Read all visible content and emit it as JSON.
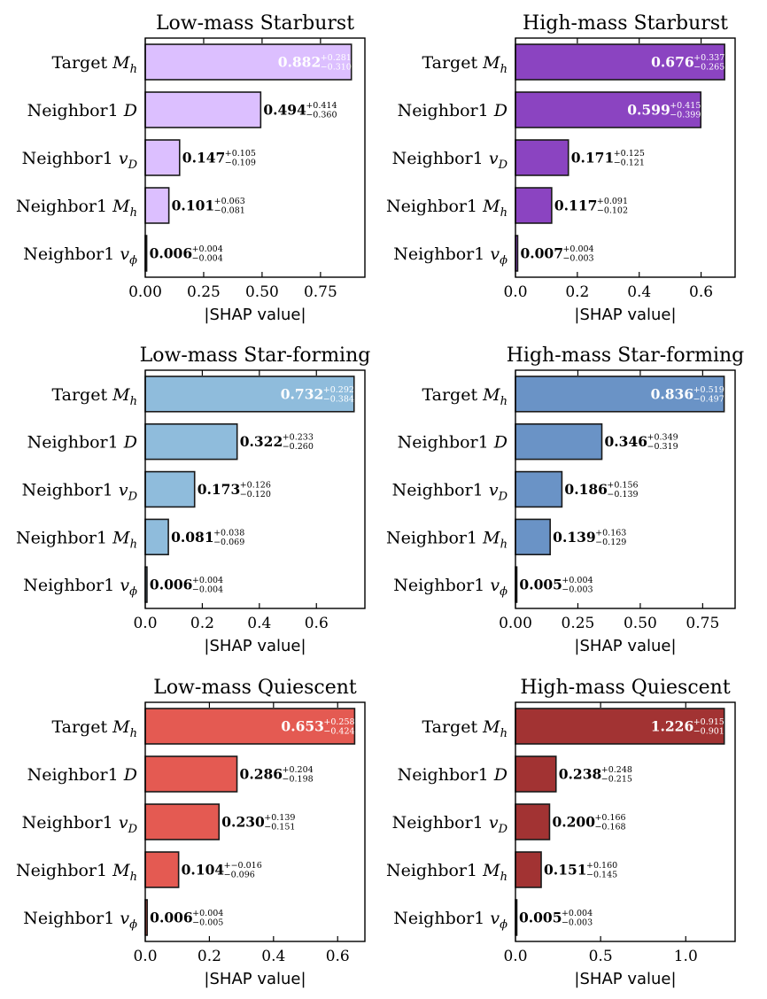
{
  "chart_data": [
    {
      "type": "bar",
      "orientation": "horizontal",
      "title": "Low-mass Starburst",
      "color": "#dcbfff",
      "xlabel": "|SHAP value|",
      "xlim": [
        0,
        0.94
      ],
      "xticks": [
        0.0,
        0.25,
        0.5,
        0.75
      ],
      "xtick_labels": [
        "0.00",
        "0.25",
        "0.50",
        "0.75"
      ],
      "categories": [
        {
          "pre": "Target",
          "sym": "M",
          "sub": "h"
        },
        {
          "pre": "Neighbor1",
          "sym": "D",
          "sub": ""
        },
        {
          "pre": "Neighbor1",
          "sym": "v",
          "sub": "D"
        },
        {
          "pre": "Neighbor1",
          "sym": "M",
          "sub": "h"
        },
        {
          "pre": "Neighbor1",
          "sym": "v",
          "sub": "ϕ"
        }
      ],
      "values": [
        0.882,
        0.494,
        0.147,
        0.101,
        0.006
      ],
      "value_labels": [
        "0.882",
        "0.494",
        "0.147",
        "0.101",
        "0.006"
      ],
      "err_plus": [
        "+0.281",
        "+0.414",
        "+0.105",
        "+0.063",
        "+0.004"
      ],
      "err_minus": [
        "−0.310",
        "−0.360",
        "−0.109",
        "−0.081",
        "−0.004"
      ]
    },
    {
      "type": "bar",
      "orientation": "horizontal",
      "title": "High-mass Starburst",
      "color": "#8b44c1",
      "xlabel": "|SHAP value|",
      "xlim": [
        0,
        0.71
      ],
      "xticks": [
        0.0,
        0.2,
        0.4,
        0.6
      ],
      "xtick_labels": [
        "0.0",
        "0.2",
        "0.4",
        "0.6"
      ],
      "categories": [
        {
          "pre": "Target",
          "sym": "M",
          "sub": "h"
        },
        {
          "pre": "Neighbor1",
          "sym": "D",
          "sub": ""
        },
        {
          "pre": "Neighbor1",
          "sym": "v",
          "sub": "D"
        },
        {
          "pre": "Neighbor1",
          "sym": "M",
          "sub": "h"
        },
        {
          "pre": "Neighbor1",
          "sym": "v",
          "sub": "ϕ"
        }
      ],
      "values": [
        0.676,
        0.599,
        0.171,
        0.117,
        0.007
      ],
      "value_labels": [
        "0.676",
        "0.599",
        "0.171",
        "0.117",
        "0.007"
      ],
      "err_plus": [
        "+0.337",
        "+0.415",
        "+0.125",
        "+0.091",
        "+0.004"
      ],
      "err_minus": [
        "−0.265",
        "−0.399",
        "−0.121",
        "−0.102",
        "−0.003"
      ]
    },
    {
      "type": "bar",
      "orientation": "horizontal",
      "title": "Low-mass Star-forming",
      "color": "#8fbcdc",
      "xlabel": "|SHAP value|",
      "xlim": [
        0,
        0.77
      ],
      "xticks": [
        0.0,
        0.2,
        0.4,
        0.6
      ],
      "xtick_labels": [
        "0.0",
        "0.2",
        "0.4",
        "0.6"
      ],
      "categories": [
        {
          "pre": "Target",
          "sym": "M",
          "sub": "h"
        },
        {
          "pre": "Neighbor1",
          "sym": "D",
          "sub": ""
        },
        {
          "pre": "Neighbor1",
          "sym": "v",
          "sub": "D"
        },
        {
          "pre": "Neighbor1",
          "sym": "M",
          "sub": "h"
        },
        {
          "pre": "Neighbor1",
          "sym": "v",
          "sub": "ϕ"
        }
      ],
      "values": [
        0.732,
        0.322,
        0.173,
        0.081,
        0.006
      ],
      "value_labels": [
        "0.732",
        "0.322",
        "0.173",
        "0.081",
        "0.006"
      ],
      "err_plus": [
        "+0.292",
        "+0.233",
        "+0.126",
        "+0.038",
        "+0.004"
      ],
      "err_minus": [
        "−0.384",
        "−0.260",
        "−0.120",
        "−0.069",
        "−0.004"
      ]
    },
    {
      "type": "bar",
      "orientation": "horizontal",
      "title": "High-mass Star-forming",
      "color": "#6a93c6",
      "xlabel": "|SHAP value|",
      "xlim": [
        0,
        0.88
      ],
      "xticks": [
        0.0,
        0.25,
        0.5,
        0.75
      ],
      "xtick_labels": [
        "0.00",
        "0.25",
        "0.50",
        "0.75"
      ],
      "categories": [
        {
          "pre": "Target",
          "sym": "M",
          "sub": "h"
        },
        {
          "pre": "Neighbor1",
          "sym": "D",
          "sub": ""
        },
        {
          "pre": "Neighbor1",
          "sym": "v",
          "sub": "D"
        },
        {
          "pre": "Neighbor1",
          "sym": "M",
          "sub": "h"
        },
        {
          "pre": "Neighbor1",
          "sym": "v",
          "sub": "ϕ"
        }
      ],
      "values": [
        0.836,
        0.346,
        0.186,
        0.139,
        0.005
      ],
      "value_labels": [
        "0.836",
        "0.346",
        "0.186",
        "0.139",
        "0.005"
      ],
      "err_plus": [
        "+0.519",
        "+0.349",
        "+0.156",
        "+0.163",
        "+0.004"
      ],
      "err_minus": [
        "−0.497",
        "−0.319",
        "−0.139",
        "−0.129",
        "−0.003"
      ]
    },
    {
      "type": "bar",
      "orientation": "horizontal",
      "title": "Low-mass Quiescent",
      "color": "#e45a52",
      "xlabel": "|SHAP value|",
      "xlim": [
        0,
        0.685
      ],
      "xticks": [
        0.0,
        0.2,
        0.4,
        0.6
      ],
      "xtick_labels": [
        "0.0",
        "0.2",
        "0.4",
        "0.6"
      ],
      "categories": [
        {
          "pre": "Target",
          "sym": "M",
          "sub": "h"
        },
        {
          "pre": "Neighbor1",
          "sym": "D",
          "sub": ""
        },
        {
          "pre": "Neighbor1",
          "sym": "v",
          "sub": "D"
        },
        {
          "pre": "Neighbor1",
          "sym": "M",
          "sub": "h"
        },
        {
          "pre": "Neighbor1",
          "sym": "v",
          "sub": "ϕ"
        }
      ],
      "values": [
        0.653,
        0.286,
        0.23,
        0.104,
        0.006
      ],
      "value_labels": [
        "0.653",
        "0.286",
        "0.230",
        "0.104",
        "0.006"
      ],
      "err_plus": [
        "+0.258",
        "+0.204",
        "+0.139",
        "+−0.016",
        "+0.004"
      ],
      "err_minus": [
        "−0.424",
        "−0.198",
        "−0.151",
        "−0.096",
        "−0.005"
      ]
    },
    {
      "type": "bar",
      "orientation": "horizontal",
      "title": "High-mass Quiescent",
      "color": "#a23333",
      "xlabel": "|SHAP value|",
      "xlim": [
        0,
        1.29
      ],
      "xticks": [
        0.0,
        0.5,
        1.0
      ],
      "xtick_labels": [
        "0.0",
        "0.5",
        "1.0"
      ],
      "categories": [
        {
          "pre": "Target",
          "sym": "M",
          "sub": "h"
        },
        {
          "pre": "Neighbor1",
          "sym": "D",
          "sub": ""
        },
        {
          "pre": "Neighbor1",
          "sym": "v",
          "sub": "D"
        },
        {
          "pre": "Neighbor1",
          "sym": "M",
          "sub": "h"
        },
        {
          "pre": "Neighbor1",
          "sym": "v",
          "sub": "ϕ"
        }
      ],
      "values": [
        1.226,
        0.238,
        0.2,
        0.151,
        0.005
      ],
      "value_labels": [
        "1.226",
        "0.238",
        "0.200",
        "0.151",
        "0.005"
      ],
      "err_plus": [
        "+0.915",
        "+0.248",
        "+0.166",
        "+0.160",
        "+0.004"
      ],
      "err_minus": [
        "−0.901",
        "−0.215",
        "−0.168",
        "−0.145",
        "−0.003"
      ]
    }
  ]
}
